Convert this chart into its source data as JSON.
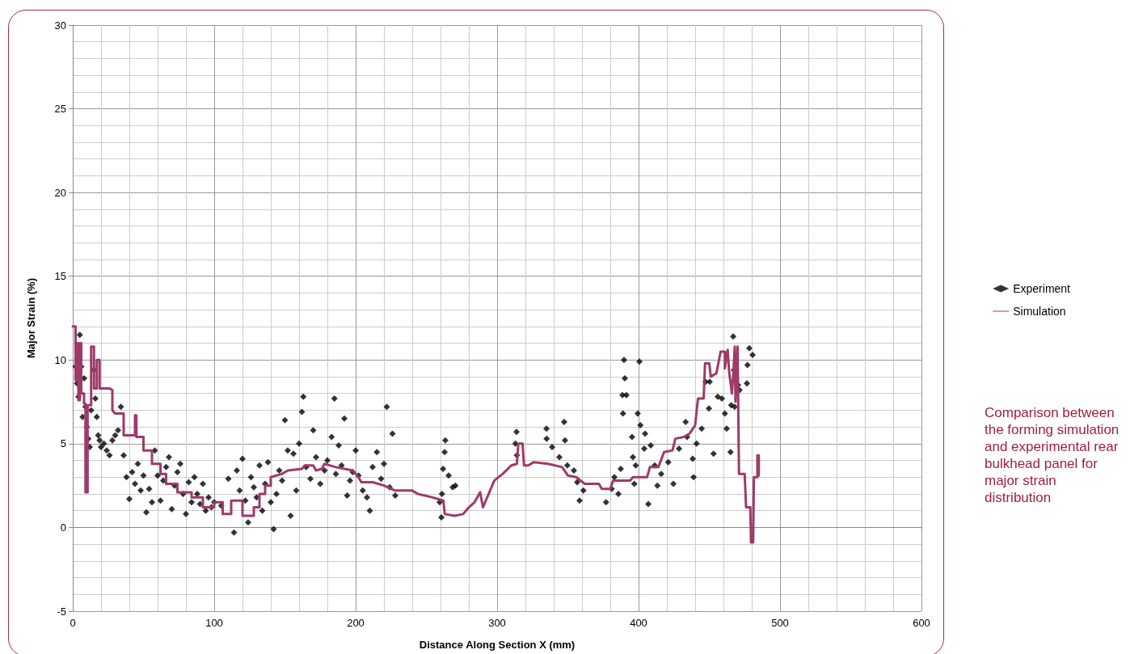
{
  "chart_data": {
    "type": "scatter",
    "xlabel": "Distance Along Section X (mm)",
    "ylabel": "Major Strain (%)",
    "xlim": [
      0,
      600
    ],
    "xticks": [
      0,
      100,
      200,
      300,
      400,
      500,
      600
    ],
    "ylim": [
      -5,
      30
    ],
    "yticks": [
      -5,
      0,
      5,
      10,
      15,
      20,
      25,
      30
    ],
    "grid": true,
    "legend": "right",
    "annotations": [
      "Comparison between the forming simulation and experimental rear bulkhead panel for major strain distribution"
    ],
    "series": [
      {
        "name": "Experiment",
        "marker": "diamond",
        "color": "#000000",
        "x": [
          2,
          3,
          4,
          5,
          6,
          7,
          8,
          9,
          10,
          11,
          12,
          13,
          15,
          16,
          17,
          18,
          19,
          20,
          22,
          24,
          26,
          28,
          30,
          32,
          34,
          36,
          38,
          40,
          42,
          44,
          46,
          48,
          50,
          52,
          54,
          56,
          58,
          60,
          62,
          64,
          66,
          68,
          70,
          72,
          74,
          76,
          78,
          80,
          82,
          84,
          86,
          88,
          90,
          92,
          94,
          96,
          98,
          100,
          105,
          110,
          114,
          116,
          118,
          120,
          122,
          124,
          126,
          128,
          130,
          132,
          134,
          136,
          138,
          140,
          142,
          144,
          146,
          148,
          150,
          152,
          154,
          156,
          158,
          160,
          162,
          163,
          165,
          168,
          170,
          172,
          175,
          178,
          180,
          183,
          185,
          186,
          188,
          190,
          192,
          194,
          196,
          198,
          200,
          202,
          205,
          208,
          210,
          212,
          215,
          218,
          220,
          222,
          224,
          226,
          228,
          259.4,
          260.6,
          261,
          261.8,
          262.9,
          263.4,
          265.7,
          268.6,
          270.5,
          313,
          313.7,
          314,
          334.9,
          335,
          338.9,
          344,
          347.4,
          348,
          349.6,
          354.3,
          356.6,
          358.3,
          361,
          377,
          381,
          382.9,
          385.7,
          387.4,
          388.6,
          389,
          389.7,
          390.3,
          391.4,
          395.4,
          396,
          397,
          398,
          399.4,
          400.6,
          401.3,
          404,
          404.6,
          406.9,
          408.6,
          411.4,
          413.3,
          416,
          421,
          424.6,
          428.6,
          433.3,
          434.3,
          438.3,
          438.9,
          441,
          444.6,
          447.4,
          449.7,
          450.3,
          453,
          456,
          458.9,
          461,
          462.3,
          465,
          465.5,
          466.9,
          467.4,
          467.9,
          470.3,
          471.4,
          476.6,
          477,
          478.3,
          480.6
        ],
        "values": [
          9.6,
          8.6,
          7.8,
          11.5,
          9.6,
          6.6,
          8.9,
          7.2,
          6,
          5.3,
          4.8,
          7,
          9.4,
          7.7,
          6.6,
          5.5,
          5.2,
          4.8,
          5,
          4.6,
          4.3,
          5.2,
          5.5,
          5.8,
          7.2,
          4.3,
          3,
          1.7,
          3.3,
          2.6,
          3.8,
          2.2,
          3.1,
          0.9,
          2.3,
          1.5,
          4.6,
          3.1,
          1.6,
          2.8,
          3.6,
          4.2,
          1.1,
          2.5,
          3.3,
          3.8,
          2,
          0.8,
          2.7,
          1.5,
          3,
          2,
          1.4,
          2.6,
          1,
          1.8,
          1.2,
          1.5,
          1.3,
          2.9,
          -0.3,
          3.4,
          2.2,
          4.1,
          1.6,
          0.3,
          3,
          2.4,
          1.8,
          3.7,
          1,
          2.6,
          3.9,
          1.5,
          -0.1,
          2,
          3.4,
          2.8,
          6.4,
          4.6,
          0.7,
          4.4,
          2.2,
          5,
          6.9,
          7.8,
          3.6,
          2.9,
          5.8,
          4.2,
          2.6,
          3.4,
          4,
          5.4,
          7.7,
          3.2,
          4.9,
          3.7,
          6.5,
          1.9,
          2.8,
          3.3,
          4.6,
          3.1,
          2.2,
          1.8,
          1,
          3.6,
          4.5,
          2.9,
          3.8,
          7.2,
          2.4,
          5.6,
          1.9,
          1.5,
          0.6,
          2,
          3.5,
          4.5,
          5.2,
          3.1,
          2.4,
          2.5,
          5,
          5.7,
          4.3,
          5.9,
          5.3,
          4.8,
          4.2,
          6.3,
          5.2,
          3.7,
          3.4,
          2.7,
          1.6,
          2.2,
          1.5,
          2.3,
          3,
          2,
          3.5,
          7.9,
          6.8,
          10,
          8.9,
          7.9,
          5.4,
          4.2,
          2.6,
          3.7,
          6.8,
          9.9,
          6.1,
          4.7,
          5.6,
          1.4,
          4.9,
          3.7,
          2.5,
          3.2,
          3.9,
          2.6,
          4.7,
          6.3,
          5.4,
          4.1,
          3,
          5,
          5.9,
          8.7,
          7.1,
          8.7,
          4.4,
          7.8,
          7.7,
          6.8,
          5.9,
          4.5,
          7.3,
          11.4,
          9.4,
          7.2,
          8.5,
          8.2,
          8.6,
          9.7,
          10.7,
          10.3
        ]
      },
      {
        "name": "Simulation",
        "type": "line",
        "marker": "none",
        "line_style": "solid",
        "color": "#9e3a6a",
        "x": [
          0,
          2,
          2,
          3,
          3,
          4,
          4,
          5,
          5,
          6,
          6,
          8,
          8,
          9,
          9,
          10.5,
          10.5,
          13,
          13,
          15,
          15,
          17,
          17,
          19,
          19,
          26,
          28,
          28,
          30,
          36,
          36,
          44,
          44,
          45,
          45,
          50,
          50,
          56,
          56,
          62,
          62,
          66,
          66,
          74,
          74,
          84,
          84,
          92,
          92,
          100,
          100,
          106,
          106,
          112,
          112,
          120,
          120,
          128,
          128,
          132,
          132,
          136,
          136,
          140,
          140,
          148,
          152,
          162,
          164,
          170,
          172,
          176,
          178,
          186,
          198,
          202,
          204,
          212,
          220,
          228,
          240,
          244,
          254,
          262,
          263,
          270,
          276,
          280,
          284,
          288,
          290,
          294,
          298,
          304,
          310,
          314,
          315,
          318,
          319,
          322,
          326,
          336,
          346,
          350,
          356,
          362,
          372,
          374,
          380,
          382,
          394,
          396,
          406,
          408,
          414,
          418,
          424,
          426,
          432,
          436,
          440,
          442,
          446,
          447,
          450,
          451,
          455,
          458,
          461,
          461,
          463,
          464,
          466,
          467,
          468,
          468.5,
          470,
          471,
          475,
          476,
          479,
          479.5,
          481,
          481.5,
          484,
          484,
          485,
          485
        ],
        "values": [
          12,
          12,
          8.8,
          8.8,
          11,
          11,
          7.6,
          7.6,
          11,
          11,
          8,
          8,
          7.4,
          7.4,
          2.1,
          2.1,
          7.3,
          7.3,
          10.8,
          10.8,
          8.3,
          8.3,
          10,
          10,
          8.3,
          8.3,
          8.2,
          7,
          6.8,
          6.8,
          5.5,
          5.5,
          6.7,
          6.7,
          5.4,
          5.4,
          4.6,
          4.6,
          3.8,
          3.8,
          3.2,
          3.2,
          2.6,
          2.6,
          2.1,
          2.1,
          1.8,
          1.8,
          1.2,
          1.2,
          1.5,
          1.5,
          0.8,
          0.8,
          1.6,
          1.6,
          0.7,
          0.7,
          1.2,
          1.2,
          2,
          2,
          2.5,
          2.5,
          3,
          3.2,
          3.4,
          3.5,
          3.7,
          3.7,
          3.4,
          3.5,
          3.8,
          3.6,
          3.4,
          3,
          2.7,
          2.7,
          2.5,
          2.2,
          2.2,
          2,
          1.8,
          1.6,
          0.8,
          0.7,
          0.8,
          1.2,
          1.5,
          2.1,
          1.2,
          2,
          2.8,
          3.2,
          3.7,
          3.8,
          5,
          5,
          3.7,
          3.7,
          3.9,
          3.8,
          3.6,
          3.1,
          3,
          2.6,
          2.6,
          2.3,
          2.3,
          2.8,
          2.8,
          3,
          3,
          3.6,
          3.6,
          4.5,
          4.6,
          5.3,
          5.4,
          5.6,
          6.1,
          7.7,
          7.7,
          9.8,
          9.8,
          9,
          9.2,
          10.5,
          10.5,
          9.5,
          10.6,
          9.3,
          8,
          9.2,
          10.8,
          7.5,
          10.8,
          3.2,
          3.2,
          1.2,
          1.2,
          -0.9,
          -0.9,
          3,
          3,
          4.3,
          4.3,
          3.1
        ]
      }
    ]
  }
}
